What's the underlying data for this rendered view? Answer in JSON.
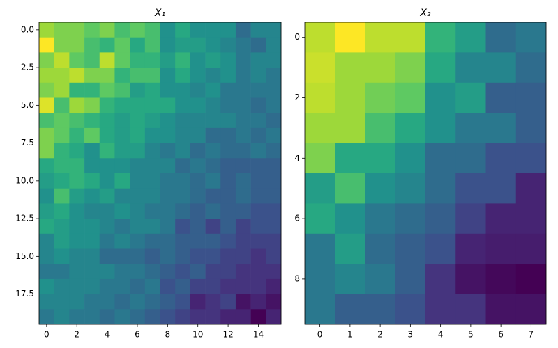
{
  "chart_data": [
    {
      "type": "heatmap",
      "title": "X₁",
      "colormap": "viridis",
      "xlim": [
        -0.5,
        15.5
      ],
      "ylim": [
        19.5,
        -0.5
      ],
      "xticks": [
        0,
        2,
        4,
        6,
        8,
        10,
        12,
        14
      ],
      "yticks": [
        {
          "value": 0,
          "label": "0.0"
        },
        2.5,
        {
          "value": 5,
          "label": "5.0"
        },
        7.5,
        {
          "value": 10,
          "label": "10.0"
        },
        12.5,
        {
          "value": 15,
          "label": "15.0"
        },
        17.5
      ],
      "z": [
        [
          0.85,
          0.8,
          0.8,
          0.75,
          0.8,
          0.7,
          0.75,
          0.7,
          0.5,
          0.6,
          0.5,
          0.5,
          0.5,
          0.35,
          0.45,
          0.45
        ],
        [
          1.0,
          0.8,
          0.8,
          0.7,
          0.65,
          0.75,
          0.6,
          0.7,
          0.5,
          0.55,
          0.55,
          0.5,
          0.45,
          0.4,
          0.35,
          0.45
        ],
        [
          0.8,
          0.9,
          0.75,
          0.7,
          0.9,
          0.75,
          0.65,
          0.65,
          0.55,
          0.65,
          0.5,
          0.55,
          0.5,
          0.4,
          0.45,
          0.45
        ],
        [
          0.85,
          0.85,
          0.9,
          0.8,
          0.8,
          0.65,
          0.7,
          0.7,
          0.5,
          0.6,
          0.5,
          0.45,
          0.5,
          0.4,
          0.45,
          0.4
        ],
        [
          0.8,
          0.85,
          0.65,
          0.65,
          0.75,
          0.7,
          0.55,
          0.6,
          0.5,
          0.5,
          0.45,
          0.5,
          0.4,
          0.4,
          0.4,
          0.4
        ],
        [
          0.95,
          0.7,
          0.85,
          0.8,
          0.65,
          0.6,
          0.6,
          0.6,
          0.6,
          0.5,
          0.5,
          0.45,
          0.4,
          0.4,
          0.35,
          0.4
        ],
        [
          0.7,
          0.75,
          0.7,
          0.65,
          0.6,
          0.55,
          0.6,
          0.55,
          0.5,
          0.45,
          0.45,
          0.45,
          0.45,
          0.4,
          0.4,
          0.35
        ],
        [
          0.8,
          0.75,
          0.65,
          0.75,
          0.6,
          0.55,
          0.6,
          0.5,
          0.5,
          0.45,
          0.45,
          0.35,
          0.35,
          0.4,
          0.35,
          0.4
        ],
        [
          0.8,
          0.65,
          0.6,
          0.5,
          0.65,
          0.55,
          0.55,
          0.45,
          0.4,
          0.45,
          0.35,
          0.4,
          0.35,
          0.35,
          0.4,
          0.35
        ],
        [
          0.6,
          0.65,
          0.65,
          0.5,
          0.5,
          0.5,
          0.45,
          0.45,
          0.45,
          0.35,
          0.4,
          0.35,
          0.3,
          0.3,
          0.3,
          0.3
        ],
        [
          0.55,
          0.6,
          0.65,
          0.6,
          0.5,
          0.6,
          0.45,
          0.45,
          0.4,
          0.4,
          0.35,
          0.4,
          0.3,
          0.35,
          0.3,
          0.3
        ],
        [
          0.5,
          0.7,
          0.55,
          0.5,
          0.55,
          0.45,
          0.45,
          0.45,
          0.4,
          0.4,
          0.35,
          0.3,
          0.3,
          0.35,
          0.3,
          0.3
        ],
        [
          0.55,
          0.6,
          0.5,
          0.45,
          0.45,
          0.5,
          0.45,
          0.4,
          0.4,
          0.35,
          0.3,
          0.35,
          0.3,
          0.3,
          0.25,
          0.25
        ],
        [
          0.6,
          0.55,
          0.5,
          0.5,
          0.45,
          0.4,
          0.45,
          0.45,
          0.4,
          0.25,
          0.3,
          0.2,
          0.3,
          0.2,
          0.25,
          0.25
        ],
        [
          0.45,
          0.55,
          0.5,
          0.5,
          0.4,
          0.45,
          0.4,
          0.35,
          0.35,
          0.3,
          0.3,
          0.3,
          0.25,
          0.2,
          0.2,
          0.2
        ],
        [
          0.45,
          0.5,
          0.45,
          0.45,
          0.35,
          0.35,
          0.35,
          0.3,
          0.35,
          0.3,
          0.25,
          0.25,
          0.2,
          0.2,
          0.15,
          0.2
        ],
        [
          0.4,
          0.4,
          0.45,
          0.45,
          0.45,
          0.4,
          0.4,
          0.35,
          0.3,
          0.25,
          0.3,
          0.2,
          0.2,
          0.15,
          0.15,
          0.15
        ],
        [
          0.5,
          0.45,
          0.45,
          0.45,
          0.4,
          0.4,
          0.35,
          0.4,
          0.25,
          0.3,
          0.2,
          0.2,
          0.15,
          0.15,
          0.15,
          0.1
        ],
        [
          0.45,
          0.45,
          0.45,
          0.4,
          0.4,
          0.35,
          0.4,
          0.35,
          0.3,
          0.25,
          0.1,
          0.15,
          0.2,
          0.05,
          0.1,
          0.05
        ],
        [
          0.4,
          0.45,
          0.4,
          0.4,
          0.35,
          0.4,
          0.35,
          0.3,
          0.25,
          0.2,
          0.15,
          0.15,
          0.1,
          0.1,
          0.0,
          0.1
        ]
      ]
    },
    {
      "type": "heatmap",
      "title": "X₂",
      "colormap": "viridis",
      "xlim": [
        -0.5,
        7.5
      ],
      "ylim": [
        9.5,
        -0.5
      ],
      "xticks": [
        0,
        1,
        2,
        3,
        4,
        5,
        6,
        7
      ],
      "yticks": [
        0,
        2,
        4,
        6,
        8
      ],
      "z": [
        [
          0.9,
          1.0,
          0.9,
          0.9,
          0.65,
          0.55,
          0.35,
          0.4
        ],
        [
          0.92,
          0.85,
          0.85,
          0.8,
          0.6,
          0.45,
          0.45,
          0.35
        ],
        [
          0.9,
          0.85,
          0.78,
          0.75,
          0.5,
          0.55,
          0.3,
          0.3
        ],
        [
          0.85,
          0.85,
          0.7,
          0.6,
          0.5,
          0.4,
          0.4,
          0.3
        ],
        [
          0.8,
          0.6,
          0.6,
          0.5,
          0.35,
          0.35,
          0.25,
          0.25
        ],
        [
          0.55,
          0.7,
          0.5,
          0.45,
          0.35,
          0.25,
          0.25,
          0.1
        ],
        [
          0.6,
          0.5,
          0.4,
          0.35,
          0.3,
          0.2,
          0.1,
          0.1
        ],
        [
          0.4,
          0.55,
          0.35,
          0.3,
          0.25,
          0.1,
          0.08,
          0.08
        ],
        [
          0.4,
          0.45,
          0.4,
          0.3,
          0.15,
          0.05,
          0.02,
          0.0
        ],
        [
          0.4,
          0.3,
          0.3,
          0.25,
          0.15,
          0.15,
          0.05,
          0.05
        ]
      ]
    }
  ]
}
